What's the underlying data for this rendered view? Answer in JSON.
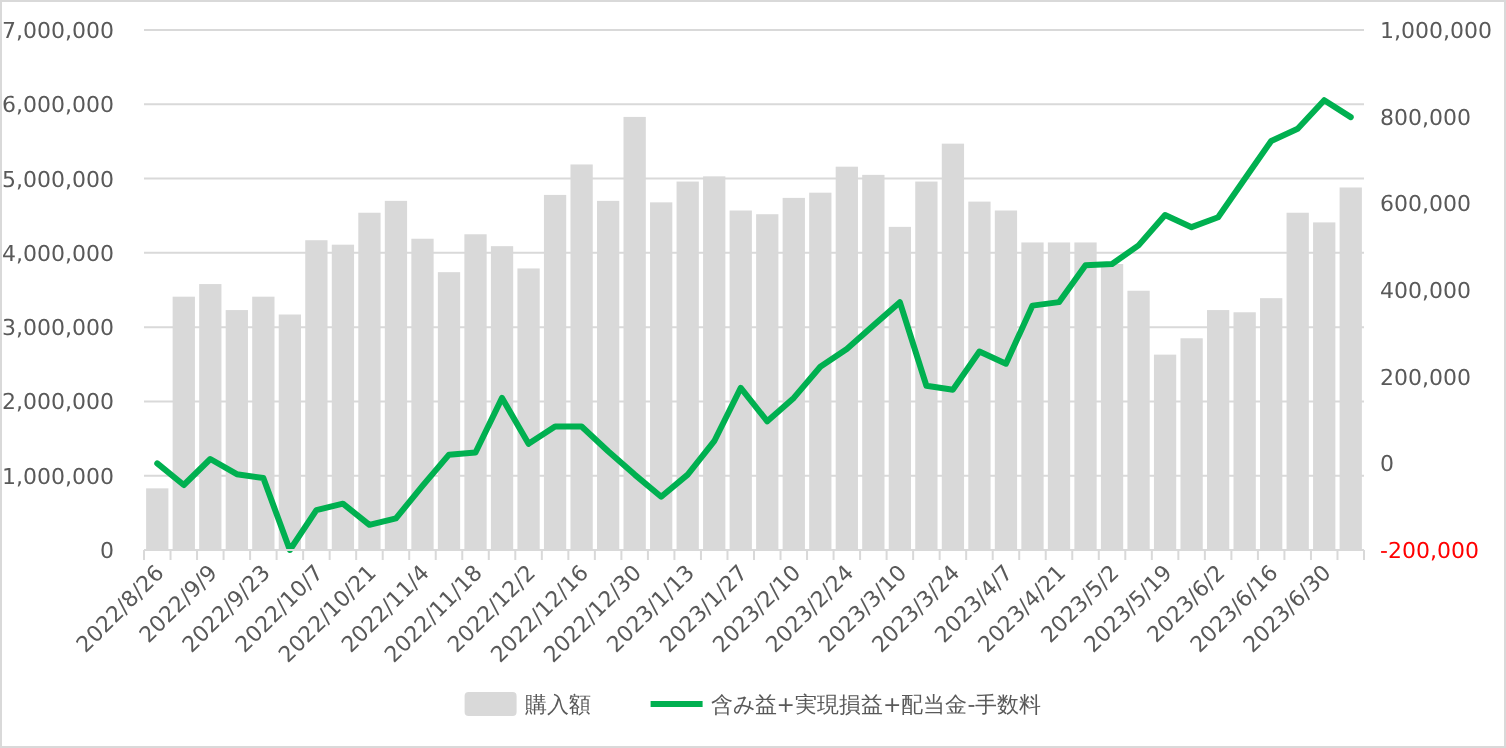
{
  "chart_data": {
    "type": "bar",
    "categories": [
      "2022/8/26",
      null,
      "2022/9/9",
      null,
      "2022/9/23",
      null,
      "2022/10/7",
      null,
      "2022/10/21",
      null,
      "2022/11/4",
      null,
      "2022/11/18",
      null,
      "2022/12/2",
      null,
      "2022/12/16",
      null,
      "2022/12/30",
      null,
      "2023/1/13",
      null,
      "2023/1/27",
      null,
      "2023/2/10",
      null,
      "2023/2/24",
      null,
      "2023/3/10",
      null,
      "2023/3/24",
      null,
      "2023/4/7",
      null,
      "2023/4/21",
      null,
      "2023/5/2",
      null,
      "2023/5/19",
      null,
      "2023/6/2",
      null,
      "2023/6/16",
      null,
      "2023/6/30",
      null
    ],
    "series": [
      {
        "name": "購入額",
        "color": "#d9d9d9",
        "values": [
          830000,
          3410000,
          3580000,
          3230000,
          3410000,
          3170000,
          4170000,
          4110000,
          4540000,
          4700000,
          4190000,
          3740000,
          4250000,
          4090000,
          3790000,
          4780000,
          5190000,
          4700000,
          5830000,
          4680000,
          4960000,
          5030000,
          4570000,
          4520000,
          4740000,
          4810000,
          5160000,
          5050000,
          4350000,
          4960000,
          5470000,
          4690000,
          4570000,
          4140000,
          4140000,
          4140000,
          3850000,
          3490000,
          2630000,
          2850000,
          3230000,
          3200000,
          3390000,
          4540000,
          4410000,
          4880000
        ]
      },
      {
        "name": "含み益+実現損益+配当金-手数料",
        "type": "line",
        "axis": "y2",
        "color": "#00b050",
        "values": [
          0,
          -50000,
          10000,
          -25000,
          -34000,
          -200000,
          -108000,
          -93000,
          -142000,
          -127000,
          -52000,
          20000,
          25000,
          151000,
          45000,
          85000,
          85000,
          28000,
          -26000,
          -77000,
          -26000,
          51000,
          174000,
          97000,
          151000,
          223000,
          264000,
          318000,
          372000,
          179000,
          170000,
          258000,
          230000,
          364000,
          372000,
          457000,
          460000,
          503000,
          573000,
          545000,
          568000,
          656000,
          744000,
          772000,
          838000,
          799000
        ]
      }
    ],
    "ylim": [
      0,
      7000000
    ],
    "yticks": [
      {
        "value": 0,
        "label": "0"
      },
      {
        "value": 1000000,
        "label": "1,000,000"
      },
      {
        "value": 2000000,
        "label": "2,000,000"
      },
      {
        "value": 3000000,
        "label": "3,000,000"
      },
      {
        "value": 4000000,
        "label": "4,000,000"
      },
      {
        "value": 5000000,
        "label": "5,000,000"
      },
      {
        "value": 6000000,
        "label": "6,000,000"
      },
      {
        "value": 7000000,
        "label": "7,000,000"
      }
    ],
    "y2lim": [
      -200000,
      1000000
    ],
    "y2ticks": [
      {
        "value": -200000,
        "label": "-200,000"
      },
      {
        "value": 0,
        "label": "0"
      },
      {
        "value": 200000,
        "label": "200,000"
      },
      {
        "value": 400000,
        "label": "400,000"
      },
      {
        "value": 600000,
        "label": "600,000"
      },
      {
        "value": 800000,
        "label": "800,000"
      },
      {
        "value": 1000000,
        "label": "1,000,000"
      }
    ],
    "grid": "y",
    "legend": "bottom"
  }
}
